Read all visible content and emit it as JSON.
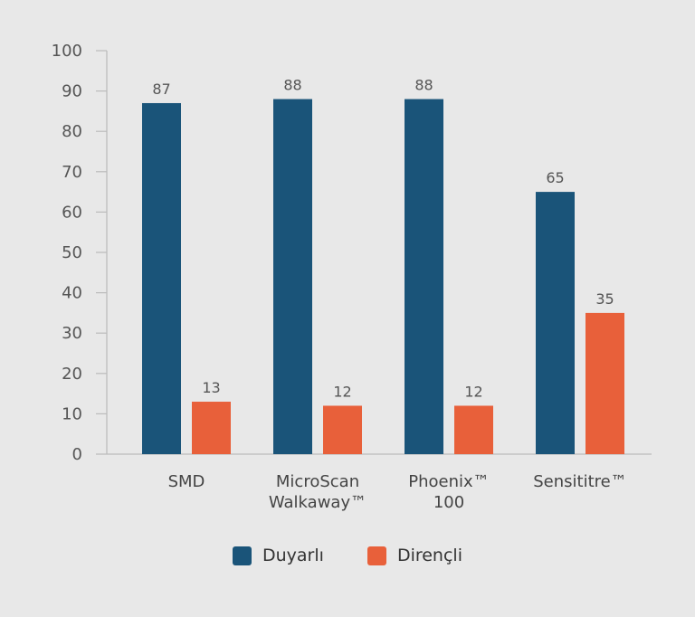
{
  "chart_data": {
    "type": "bar",
    "categories": [
      [
        "SMD"
      ],
      [
        "MicroScan",
        "Walkaway™"
      ],
      [
        "Phoenix™",
        "100"
      ],
      [
        "Sensititre™"
      ]
    ],
    "series": [
      {
        "name": "Duyarlı",
        "values": [
          87,
          88,
          88,
          65
        ],
        "color": "#1a5479"
      },
      {
        "name": "Dirençli",
        "values": [
          13,
          12,
          12,
          35
        ],
        "color": "#e8603a"
      }
    ],
    "ylim": [
      0,
      100
    ],
    "yticks": [
      0,
      10,
      20,
      30,
      40,
      50,
      60,
      70,
      80,
      90,
      100
    ],
    "grid": false,
    "legend": "bottom"
  }
}
